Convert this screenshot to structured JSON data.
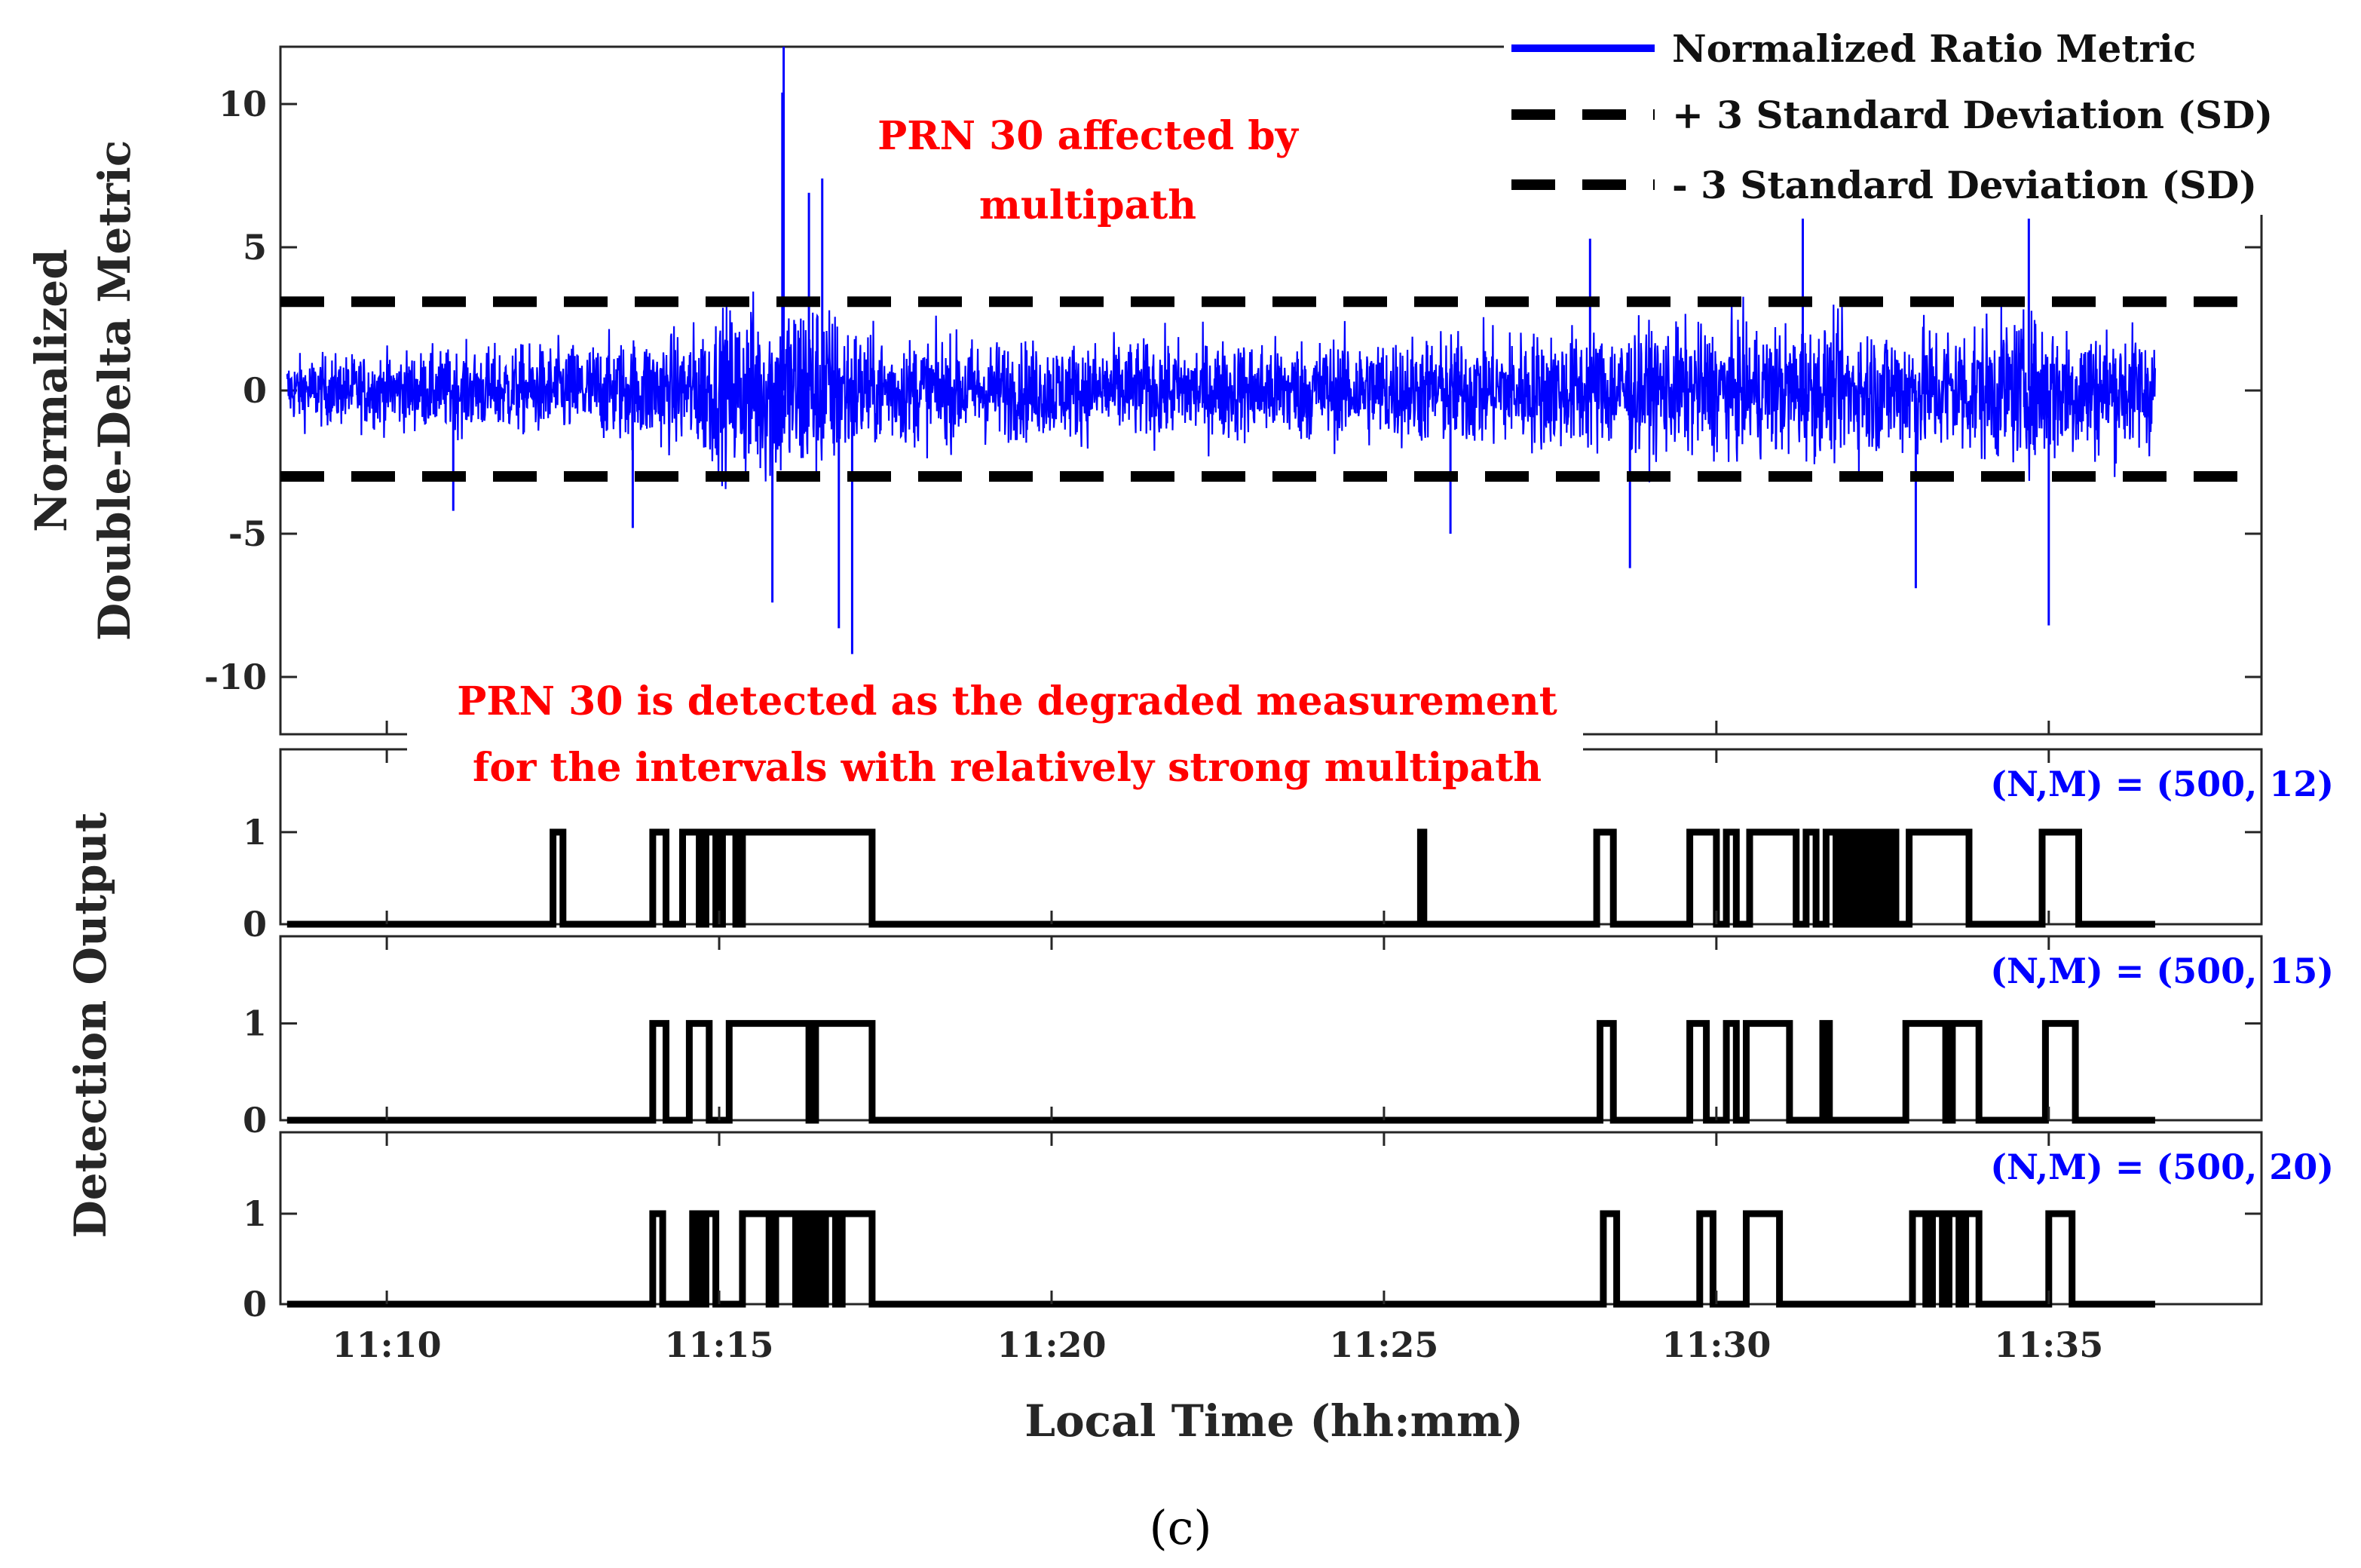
{
  "chart_data": [
    {
      "type": "line",
      "panel": "top",
      "ylabel_lines": [
        "Normalized",
        "Double-Delta Metric"
      ],
      "ylim": [
        -12,
        12
      ],
      "yticks": [
        10,
        5,
        0,
        -5,
        -10
      ],
      "xlim_minutes": [
        8.4,
        38.2
      ],
      "legend_position": "top-right",
      "series": [
        {
          "name": "Normalized Ratio Metric",
          "color": "#0000ff",
          "style": "solid",
          "x_range_minutes": [
            8.5,
            36.6
          ],
          "envelope_amplitude": [
            {
              "x": 8.5,
              "amp": 1.8
            },
            {
              "x": 11.0,
              "amp": 2.2
            },
            {
              "x": 13.0,
              "amp": 2.6
            },
            {
              "x": 14.5,
              "amp": 3.2
            },
            {
              "x": 15.3,
              "amp": 4.8
            },
            {
              "x": 16.3,
              "amp": 5.5
            },
            {
              "x": 17.3,
              "amp": 3.0
            },
            {
              "x": 20.0,
              "amp": 2.6
            },
            {
              "x": 24.0,
              "amp": 2.8
            },
            {
              "x": 28.0,
              "amp": 3.3
            },
            {
              "x": 30.0,
              "amp": 3.5
            },
            {
              "x": 33.0,
              "amp": 3.6
            },
            {
              "x": 35.0,
              "amp": 4.0
            },
            {
              "x": 36.6,
              "amp": 3.2
            }
          ],
          "spikes": [
            {
              "x": 15.95,
              "y": 10.4
            },
            {
              "x": 15.97,
              "y": 12.0
            },
            {
              "x": 16.55,
              "y": 7.4
            },
            {
              "x": 16.35,
              "y": 6.9
            },
            {
              "x": 15.8,
              "y": -7.4
            },
            {
              "x": 16.8,
              "y": -8.3
            },
            {
              "x": 17.0,
              "y": -9.2
            },
            {
              "x": 28.7,
              "y": -6.2
            },
            {
              "x": 33.0,
              "y": -6.9
            },
            {
              "x": 34.7,
              "y": 6.0
            },
            {
              "x": 35.0,
              "y": -8.2
            },
            {
              "x": 11.0,
              "y": -4.2
            },
            {
              "x": 13.7,
              "y": -4.8
            },
            {
              "x": 26.0,
              "y": -5.0
            },
            {
              "x": 28.1,
              "y": 5.3
            },
            {
              "x": 31.3,
              "y": 6.0
            }
          ]
        },
        {
          "name": "+ 3 Standard Deviation (SD)",
          "color": "#000000",
          "style": "dashed",
          "y": 3.1
        },
        {
          "name": "- 3 Standard Deviation (SD)",
          "color": "#000000",
          "style": "dashed",
          "y": -3.0
        }
      ],
      "annotations": [
        {
          "text_lines": [
            "PRN 30 affected by",
            "multipath"
          ],
          "color": "#ff0000"
        },
        {
          "text_lines": [
            "PRN 30 is detected as the degraded measurement",
            "for the intervals with relatively strong multipath"
          ],
          "color": "#ff0000"
        }
      ]
    },
    {
      "type": "line",
      "panel": "detection",
      "label": "(N,M) = (500, 12)",
      "ylim": [
        0,
        1.9
      ],
      "yticks": [
        1,
        0
      ],
      "x_start": 8.5,
      "x_end": 36.6,
      "ones_intervals": [
        [
          12.5,
          12.65
        ],
        [
          14.0,
          14.2
        ],
        [
          14.45,
          14.7
        ],
        [
          14.8,
          14.95
        ],
        [
          15.05,
          15.25
        ],
        [
          15.35,
          17.3
        ],
        [
          25.55,
          25.6
        ],
        [
          28.2,
          28.45
        ],
        [
          29.6,
          30.0
        ],
        [
          30.15,
          30.3
        ],
        [
          30.5,
          31.2
        ],
        [
          31.35,
          31.5
        ],
        [
          31.65,
          31.8
        ],
        [
          31.9,
          31.98
        ],
        [
          32.05,
          32.15
        ],
        [
          32.2,
          32.3
        ],
        [
          32.4,
          32.5
        ],
        [
          32.6,
          32.7
        ],
        [
          32.9,
          33.8
        ],
        [
          34.9,
          35.45
        ]
      ]
    },
    {
      "type": "line",
      "panel": "detection",
      "label": "(N,M) = (500, 15)",
      "ylim": [
        0,
        1.9
      ],
      "yticks": [
        1,
        0
      ],
      "x_start": 8.5,
      "x_end": 36.6,
      "ones_intervals": [
        [
          14.0,
          14.2
        ],
        [
          14.55,
          14.85
        ],
        [
          15.15,
          16.35
        ],
        [
          16.45,
          17.3
        ],
        [
          28.25,
          28.45
        ],
        [
          29.6,
          29.85
        ],
        [
          30.15,
          30.3
        ],
        [
          30.45,
          31.1
        ],
        [
          31.6,
          31.7
        ],
        [
          32.85,
          33.45
        ],
        [
          33.55,
          33.95
        ],
        [
          34.95,
          35.4
        ]
      ]
    },
    {
      "type": "line",
      "panel": "detection",
      "label": "(N,M) = (500, 20)",
      "ylim": [
        0,
        1.9
      ],
      "yticks": [
        1,
        0
      ],
      "x_start": 8.5,
      "x_end": 36.6,
      "ones_intervals": [
        [
          14.0,
          14.15
        ],
        [
          14.6,
          14.7
        ],
        [
          14.8,
          14.95
        ],
        [
          15.35,
          15.75
        ],
        [
          15.85,
          16.15
        ],
        [
          16.25,
          16.3
        ],
        [
          16.4,
          16.5
        ],
        [
          16.6,
          16.75
        ],
        [
          16.85,
          17.3
        ],
        [
          28.3,
          28.5
        ],
        [
          29.75,
          29.95
        ],
        [
          30.45,
          30.95
        ],
        [
          32.95,
          33.15
        ],
        [
          33.25,
          33.4
        ],
        [
          33.5,
          33.65
        ],
        [
          33.75,
          33.95
        ],
        [
          35.0,
          35.35
        ]
      ]
    }
  ],
  "xaxis": {
    "label": "Local Time (hh:mm)",
    "xlim_minutes": [
      8.4,
      38.2
    ],
    "ticks": [
      {
        "minute": 10,
        "label": "11:10"
      },
      {
        "minute": 15,
        "label": "11:15"
      },
      {
        "minute": 20,
        "label": "11:20"
      },
      {
        "minute": 25,
        "label": "11:25"
      },
      {
        "minute": 30,
        "label": "11:30"
      },
      {
        "minute": 35,
        "label": "11:35"
      }
    ]
  },
  "detection_ylabel": "Detection Output",
  "caption": "(c)"
}
